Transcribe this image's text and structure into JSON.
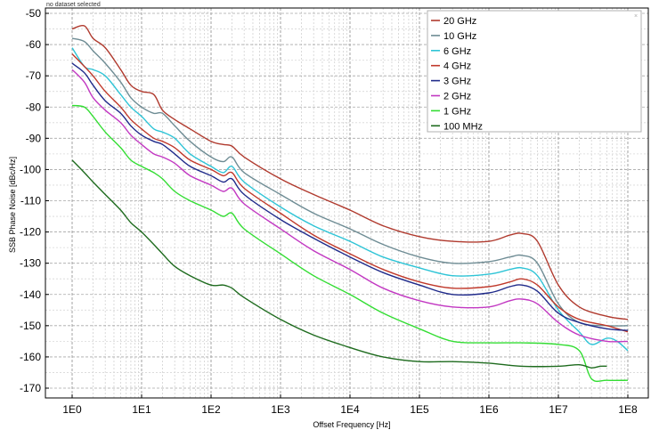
{
  "status": {
    "text": "no dataset selected"
  },
  "chart_data": {
    "type": "line",
    "title": "",
    "xlabel": "Offset Frequency [Hz]",
    "ylabel": "SSB Phase Noise [dBc/Hz]",
    "xscale": "log",
    "xlim": [
      1,
      100000000
    ],
    "ylim": [
      -170,
      -50
    ],
    "grid": true,
    "legend_position": "top-right",
    "x_tick_labels": [
      "1E0",
      "1E1",
      "1E2",
      "1E3",
      "1E4",
      "1E5",
      "1E6",
      "1E7",
      "1E8"
    ],
    "y_tick_labels": [
      "-50",
      "-60",
      "-70",
      "-80",
      "-90",
      "-100",
      "-110",
      "-120",
      "-130",
      "-140",
      "-150",
      "-160",
      "-170"
    ],
    "series": [
      {
        "name": "20 GHz",
        "color": "#b03a2e",
        "points": [
          [
            1,
            -55
          ],
          [
            1.5,
            -54
          ],
          [
            2,
            -58
          ],
          [
            3,
            -61
          ],
          [
            5,
            -68
          ],
          [
            7,
            -73
          ],
          [
            10,
            -75
          ],
          [
            15,
            -76
          ],
          [
            20,
            -81
          ],
          [
            30,
            -84
          ],
          [
            50,
            -87
          ],
          [
            100,
            -91
          ],
          [
            150,
            -92
          ],
          [
            200,
            -92.5
          ],
          [
            300,
            -96
          ],
          [
            1000,
            -103
          ],
          [
            3000,
            -108
          ],
          [
            10000,
            -113
          ],
          [
            30000,
            -118
          ],
          [
            100000,
            -121.5
          ],
          [
            300000,
            -123
          ],
          [
            1000000,
            -123
          ],
          [
            2000000,
            -121
          ],
          [
            3000000,
            -120.5
          ],
          [
            5000000,
            -123
          ],
          [
            10000000,
            -137
          ],
          [
            20000000,
            -144
          ],
          [
            50000000,
            -147
          ],
          [
            100000000,
            -148
          ]
        ]
      },
      {
        "name": "10 GHz",
        "color": "#6e8c94",
        "points": [
          [
            1,
            -58
          ],
          [
            1.5,
            -59
          ],
          [
            2,
            -62
          ],
          [
            3,
            -66
          ],
          [
            5,
            -72
          ],
          [
            7,
            -77
          ],
          [
            10,
            -80
          ],
          [
            15,
            -82
          ],
          [
            20,
            -82
          ],
          [
            30,
            -86
          ],
          [
            50,
            -91
          ],
          [
            100,
            -96
          ],
          [
            150,
            -97.5
          ],
          [
            200,
            -96
          ],
          [
            300,
            -101
          ],
          [
            1000,
            -108
          ],
          [
            3000,
            -114
          ],
          [
            10000,
            -119
          ],
          [
            30000,
            -124
          ],
          [
            100000,
            -128
          ],
          [
            300000,
            -130
          ],
          [
            1000000,
            -129.5
          ],
          [
            2000000,
            -128
          ],
          [
            3000000,
            -127.5
          ],
          [
            5000000,
            -130
          ],
          [
            10000000,
            -143
          ],
          [
            20000000,
            -149
          ],
          [
            50000000,
            -150
          ],
          [
            100000000,
            -150
          ]
        ]
      },
      {
        "name": "6 GHz",
        "color": "#2ec4d6",
        "points": [
          [
            1,
            -61
          ],
          [
            1.5,
            -67
          ],
          [
            2,
            -68
          ],
          [
            3,
            -70
          ],
          [
            5,
            -76
          ],
          [
            7,
            -80
          ],
          [
            10,
            -83
          ],
          [
            15,
            -87
          ],
          [
            20,
            -88
          ],
          [
            30,
            -90
          ],
          [
            50,
            -95
          ],
          [
            100,
            -99
          ],
          [
            150,
            -101
          ],
          [
            200,
            -99
          ],
          [
            300,
            -104
          ],
          [
            1000,
            -112
          ],
          [
            3000,
            -118
          ],
          [
            10000,
            -123
          ],
          [
            30000,
            -128
          ],
          [
            100000,
            -131.5
          ],
          [
            300000,
            -134
          ],
          [
            1000000,
            -133.5
          ],
          [
            2000000,
            -132
          ],
          [
            3000000,
            -131.5
          ],
          [
            5000000,
            -134
          ],
          [
            10000000,
            -145
          ],
          [
            20000000,
            -152
          ],
          [
            30000000,
            -156
          ],
          [
            50000000,
            -154
          ],
          [
            70000000,
            -155
          ],
          [
            100000000,
            -158
          ]
        ]
      },
      {
        "name": "4 GHz",
        "color": "#c0392b",
        "points": [
          [
            1,
            -63
          ],
          [
            1.5,
            -67
          ],
          [
            2,
            -70
          ],
          [
            3,
            -75
          ],
          [
            5,
            -80
          ],
          [
            7,
            -84
          ],
          [
            10,
            -87
          ],
          [
            15,
            -90
          ],
          [
            20,
            -91
          ],
          [
            30,
            -93
          ],
          [
            50,
            -97
          ],
          [
            100,
            -100
          ],
          [
            150,
            -102
          ],
          [
            200,
            -101
          ],
          [
            300,
            -106
          ],
          [
            1000,
            -114
          ],
          [
            3000,
            -121
          ],
          [
            10000,
            -127
          ],
          [
            30000,
            -132
          ],
          [
            100000,
            -136
          ],
          [
            300000,
            -138
          ],
          [
            1000000,
            -137.5
          ],
          [
            2000000,
            -136
          ],
          [
            3000000,
            -135
          ],
          [
            5000000,
            -137
          ],
          [
            10000000,
            -144
          ],
          [
            20000000,
            -148
          ],
          [
            50000000,
            -150
          ],
          [
            100000000,
            -152
          ]
        ]
      },
      {
        "name": "3 GHz",
        "color": "#1f2a8a",
        "points": [
          [
            1,
            -66
          ],
          [
            1.5,
            -69
          ],
          [
            2,
            -73
          ],
          [
            3,
            -78
          ],
          [
            5,
            -82
          ],
          [
            7,
            -86
          ],
          [
            10,
            -89
          ],
          [
            15,
            -91
          ],
          [
            20,
            -92
          ],
          [
            30,
            -95
          ],
          [
            50,
            -99
          ],
          [
            100,
            -102
          ],
          [
            150,
            -104
          ],
          [
            200,
            -103
          ],
          [
            300,
            -108
          ],
          [
            1000,
            -116
          ],
          [
            3000,
            -122
          ],
          [
            10000,
            -128
          ],
          [
            30000,
            -133
          ],
          [
            100000,
            -137
          ],
          [
            300000,
            -140
          ],
          [
            1000000,
            -139.5
          ],
          [
            2000000,
            -137.5
          ],
          [
            3000000,
            -137
          ],
          [
            5000000,
            -139
          ],
          [
            10000000,
            -146
          ],
          [
            20000000,
            -149
          ],
          [
            50000000,
            -151
          ],
          [
            100000000,
            -151.5
          ]
        ]
      },
      {
        "name": "2 GHz",
        "color": "#c238c2",
        "points": [
          [
            1,
            -68
          ],
          [
            1.5,
            -72
          ],
          [
            2,
            -77
          ],
          [
            3,
            -81
          ],
          [
            5,
            -85
          ],
          [
            7,
            -89
          ],
          [
            10,
            -92
          ],
          [
            15,
            -95
          ],
          [
            20,
            -96
          ],
          [
            30,
            -98
          ],
          [
            50,
            -102
          ],
          [
            100,
            -105
          ],
          [
            150,
            -107
          ],
          [
            200,
            -106
          ],
          [
            300,
            -111
          ],
          [
            1000,
            -119
          ],
          [
            3000,
            -126
          ],
          [
            10000,
            -132
          ],
          [
            30000,
            -138
          ],
          [
            100000,
            -142
          ],
          [
            300000,
            -144
          ],
          [
            1000000,
            -144
          ],
          [
            2000000,
            -142
          ],
          [
            3000000,
            -141.5
          ],
          [
            5000000,
            -143
          ],
          [
            10000000,
            -149
          ],
          [
            20000000,
            -153
          ],
          [
            50000000,
            -155
          ],
          [
            100000000,
            -155
          ]
        ]
      },
      {
        "name": "1 GHz",
        "color": "#33dd33",
        "points": [
          [
            1,
            -79.5
          ],
          [
            1.5,
            -80
          ],
          [
            2,
            -83
          ],
          [
            3,
            -88
          ],
          [
            5,
            -93
          ],
          [
            7,
            -97
          ],
          [
            10,
            -99
          ],
          [
            15,
            -101
          ],
          [
            20,
            -103
          ],
          [
            30,
            -107
          ],
          [
            50,
            -110
          ],
          [
            100,
            -113
          ],
          [
            150,
            -115
          ],
          [
            200,
            -114
          ],
          [
            300,
            -119
          ],
          [
            1000,
            -127
          ],
          [
            3000,
            -134
          ],
          [
            10000,
            -140
          ],
          [
            30000,
            -146
          ],
          [
            100000,
            -151
          ],
          [
            300000,
            -155
          ],
          [
            1000000,
            -155.5
          ],
          [
            3000000,
            -155.5
          ],
          [
            10000000,
            -156
          ],
          [
            20000000,
            -158
          ],
          [
            30000000,
            -167
          ],
          [
            50000000,
            -167.5
          ],
          [
            100000000,
            -167.5
          ]
        ]
      },
      {
        "name": "100 MHz",
        "color": "#1e6b1e",
        "points": [
          [
            1,
            -97
          ],
          [
            1.5,
            -101
          ],
          [
            2,
            -104
          ],
          [
            3,
            -108
          ],
          [
            5,
            -113
          ],
          [
            7,
            -117
          ],
          [
            10,
            -120
          ],
          [
            15,
            -124
          ],
          [
            20,
            -127
          ],
          [
            30,
            -131
          ],
          [
            50,
            -134
          ],
          [
            100,
            -137
          ],
          [
            150,
            -137
          ],
          [
            200,
            -138
          ],
          [
            300,
            -141
          ],
          [
            1000,
            -148
          ],
          [
            3000,
            -153
          ],
          [
            10000,
            -157
          ],
          [
            30000,
            -160
          ],
          [
            100000,
            -161.5
          ],
          [
            300000,
            -161.5
          ],
          [
            1000000,
            -162
          ],
          [
            3000000,
            -163
          ],
          [
            10000000,
            -163
          ],
          [
            20000000,
            -162.5
          ],
          [
            30000000,
            -163.5
          ],
          [
            40000000,
            -163
          ],
          [
            50000000,
            -163
          ]
        ]
      }
    ]
  }
}
